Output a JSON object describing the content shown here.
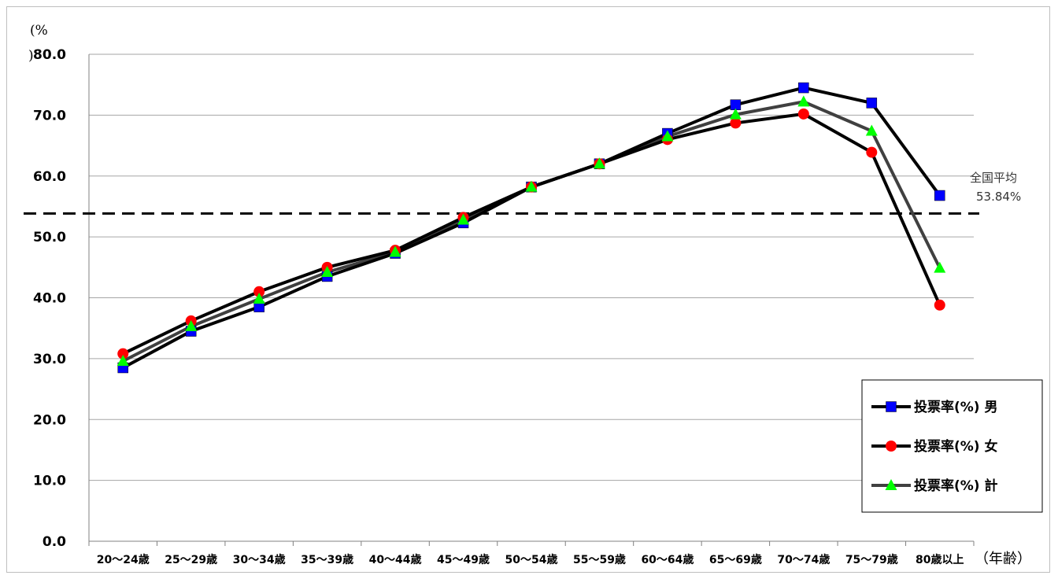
{
  "chart_data": {
    "type": "line",
    "y_unit": "(%)",
    "x_unit": "（年齢）",
    "ylim": [
      0,
      80
    ],
    "yticks": [
      "0.0",
      "10.0",
      "20.0",
      "30.0",
      "40.0",
      "50.0",
      "60.0",
      "70.0",
      "80.0"
    ],
    "categories": [
      "20～24歳",
      "25～29歳",
      "30～34歳",
      "35～39歳",
      "40～44歳",
      "45～49歳",
      "50～54歳",
      "55～59歳",
      "60～64歳",
      "65～69歳",
      "70～74歳",
      "75～79歳",
      "80歳以上"
    ],
    "series": [
      {
        "name": "投票率(%) 男",
        "color": "#0000ff",
        "line_color": "#000000",
        "marker": "square",
        "values": [
          28.5,
          34.5,
          38.5,
          43.5,
          47.3,
          52.3,
          58.2,
          62.0,
          67.0,
          71.7,
          74.5,
          72.0,
          56.8
        ]
      },
      {
        "name": "投票率(%) 女",
        "color": "#ff0000",
        "line_color": "#000000",
        "marker": "circle",
        "values": [
          30.8,
          36.2,
          41.0,
          45.0,
          47.8,
          53.2,
          58.2,
          62.0,
          66.0,
          68.7,
          70.2,
          63.9,
          38.8
        ]
      },
      {
        "name": "投票率(%) 計",
        "color": "#00ff00",
        "line_color": "#404040",
        "marker": "triangle",
        "values": [
          29.6,
          35.3,
          39.8,
          44.2,
          47.5,
          52.8,
          58.2,
          62.0,
          66.5,
          70.1,
          72.2,
          67.4,
          44.9
        ]
      }
    ],
    "reference_line": {
      "label": "全国平均",
      "value_label": "53.84%",
      "value": 53.84
    },
    "legend_position": "bottom-right",
    "grid": true
  }
}
